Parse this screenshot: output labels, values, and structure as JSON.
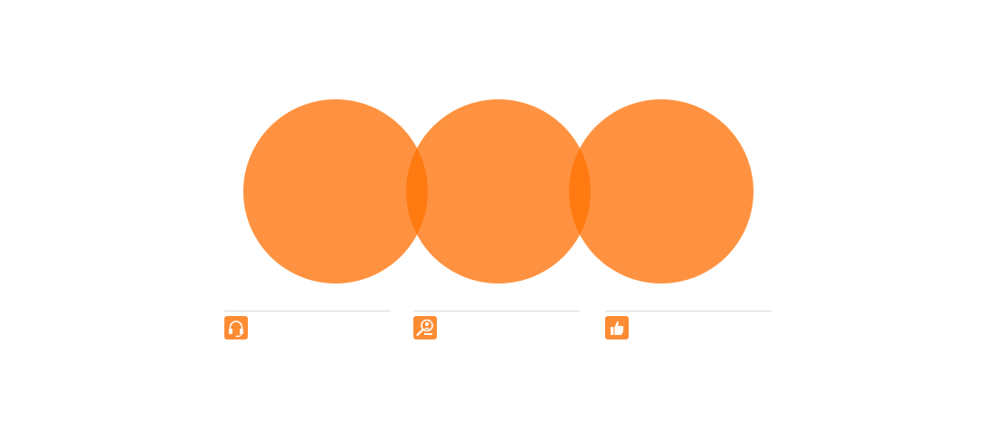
{
  "diagram": {
    "type": "venn-three-circles",
    "fill_color": "#FF9240",
    "overlap_color": "#FF7A10",
    "circle_opacity": 0.88,
    "circles": [
      {
        "id": "circle-1",
        "label": ""
      },
      {
        "id": "circle-2",
        "label": ""
      },
      {
        "id": "circle-3",
        "label": ""
      }
    ]
  },
  "columns": [
    {
      "icon": "headphones-icon",
      "caption": ""
    },
    {
      "icon": "search-person-icon",
      "caption": ""
    },
    {
      "icon": "thumbs-up-icon",
      "caption": ""
    }
  ],
  "colors": {
    "accent": "#FF8C33",
    "divider": "#D9D9D9",
    "icon_glyph": "#FFFFFF"
  }
}
